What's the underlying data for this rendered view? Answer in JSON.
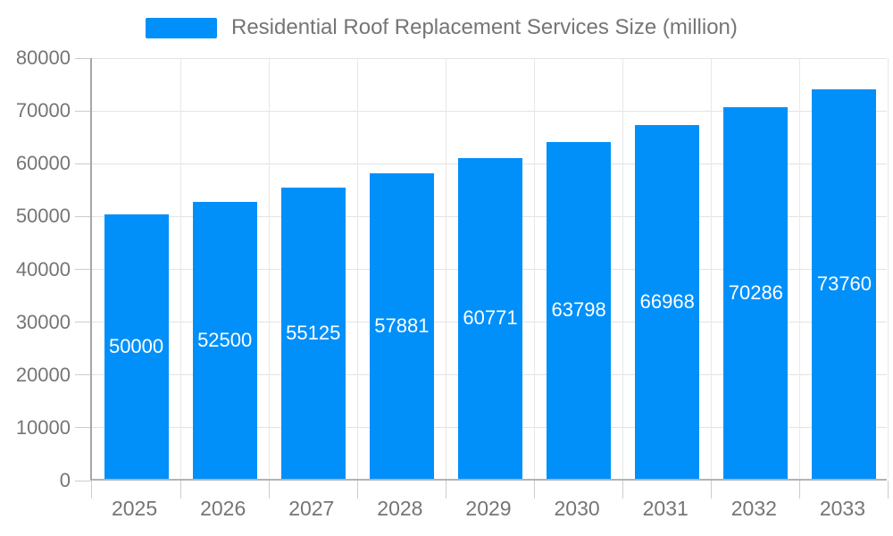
{
  "page": {
    "background_color": "#ffffff"
  },
  "legend": {
    "label": "Residential Roof Replacement Services Size (million)",
    "position": "top"
  },
  "chart_data": {
    "type": "bar",
    "title": "Residential Roof Replacement Services Size (million)",
    "categories": [
      "2025",
      "2026",
      "2027",
      "2028",
      "2029",
      "2030",
      "2031",
      "2032",
      "2033"
    ],
    "values": [
      50000,
      52500,
      55125,
      57881,
      60771,
      63798,
      66968,
      70286,
      73760
    ],
    "value_labels": [
      "50000",
      "52500",
      "55125",
      "57881",
      "60771",
      "63798",
      "66968",
      "70286",
      "73760"
    ],
    "xlabel": "",
    "ylabel": "",
    "ylim": [
      0,
      80000
    ],
    "yticks": [
      0,
      10000,
      20000,
      30000,
      40000,
      50000,
      60000,
      70000,
      80000
    ],
    "ytick_labels": [
      "0",
      "10000",
      "20000",
      "30000",
      "40000",
      "50000",
      "60000",
      "70000",
      "80000"
    ],
    "grid": "horizontal-and-vertical",
    "legend_position": "top",
    "bar_color": "#0190fa",
    "bar_value_label_color": "#ffffff",
    "axis_text_color": "#757575",
    "gridline_color": "#e3e3e3"
  }
}
